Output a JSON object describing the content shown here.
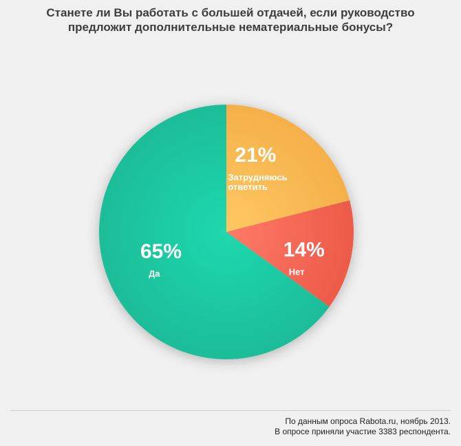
{
  "title": {
    "line1": "Станете ли Вы работать с большей отдачей, если руководство",
    "line2": "предложит дополнительные нематериальные бонусы?"
  },
  "chart_data": {
    "type": "pie",
    "title": "Станете ли Вы работать с большей отдачей, если руководство предложит дополнительные нематериальные бонусы?",
    "unit": "%",
    "slices": [
      {
        "label": "Затрудняюсь ответить",
        "label_lines": [
          "Затрудняюсь",
          "ответить"
        ],
        "value": 21,
        "display": "21%",
        "color": "#f5b04a",
        "color_light": "#ffc862"
      },
      {
        "label": "Нет",
        "label_lines": [
          "Нет"
        ],
        "value": 14,
        "display": "14%",
        "color": "#ec5b48",
        "color_light": "#ff7a68"
      },
      {
        "label": "Да",
        "label_lines": [
          "Да"
        ],
        "value": 65,
        "display": "65%",
        "color": "#1bbd98",
        "color_light": "#20d8ae"
      }
    ],
    "start": "12 o'clock",
    "direction": "clockwise",
    "legend": "none"
  },
  "footer": {
    "line1": "По данным опроса Rabota.ru, ноябрь 2013.",
    "line2": "В опросе приняли участие 3383 респондента."
  }
}
